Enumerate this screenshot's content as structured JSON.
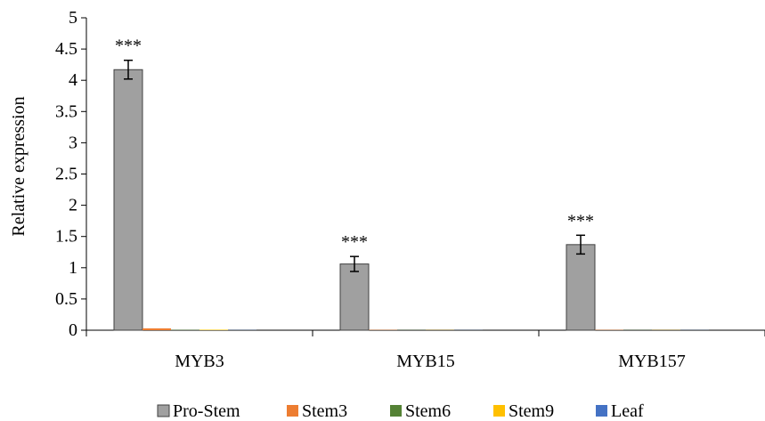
{
  "chart_data": {
    "type": "bar",
    "title": "",
    "xlabel": "",
    "ylabel": "Relative expression",
    "ylim": [
      0,
      5
    ],
    "yticks": [
      "0",
      "0.5",
      "1",
      "1.5",
      "2",
      "2.5",
      "3",
      "3.5",
      "4",
      "4.5",
      "5"
    ],
    "categories": [
      "MYB3",
      "MYB15",
      "MYB157"
    ],
    "series": [
      {
        "name": "Pro-Stem",
        "color": "#a0a0a0",
        "values": [
          4.17,
          1.06,
          1.37
        ],
        "errors": [
          0.15,
          0.12,
          0.15
        ],
        "annotations": [
          "***",
          "***",
          "***"
        ]
      },
      {
        "name": "Stem3",
        "color": "#ed7d31",
        "values": [
          0.03,
          0.005,
          0.005
        ],
        "errors": [
          0,
          0,
          0
        ],
        "annotations": [
          "",
          "",
          ""
        ]
      },
      {
        "name": "Stem6",
        "color": "#548235",
        "values": [
          0.005,
          0.003,
          0.003
        ],
        "errors": [
          0,
          0,
          0
        ],
        "annotations": [
          "",
          "",
          ""
        ]
      },
      {
        "name": "Stem9",
        "color": "#ffc000",
        "values": [
          0.008,
          0.003,
          0.003
        ],
        "errors": [
          0,
          0,
          0
        ],
        "annotations": [
          "",
          "",
          ""
        ]
      },
      {
        "name": "Leaf",
        "color": "#4472c4",
        "values": [
          0.003,
          0.002,
          0.002
        ],
        "errors": [
          0,
          0,
          0
        ],
        "annotations": [
          "",
          "",
          ""
        ]
      }
    ],
    "grid": false,
    "legend_position": "bottom"
  }
}
